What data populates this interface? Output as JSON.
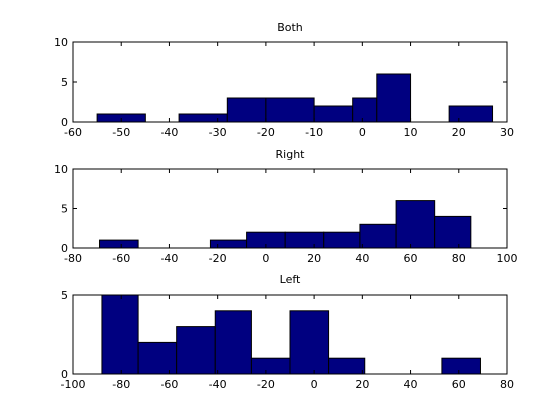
{
  "chart_data": [
    {
      "type": "bar",
      "title": "Both",
      "xlabel": "",
      "ylabel": "",
      "xlim": [
        -60,
        30
      ],
      "ylim": [
        0,
        10
      ],
      "x_ticks": [
        -60,
        -50,
        -40,
        -30,
        -20,
        -10,
        0,
        10,
        20,
        30
      ],
      "y_ticks": [
        0,
        5,
        10
      ],
      "bins": [
        {
          "x0": -55,
          "x1": -45,
          "value": 1
        },
        {
          "x0": -38,
          "x1": -28,
          "value": 1
        },
        {
          "x0": -28,
          "x1": -20,
          "value": 3
        },
        {
          "x0": -20,
          "x1": -10,
          "value": 3
        },
        {
          "x0": -10,
          "x1": -2,
          "value": 2
        },
        {
          "x0": -2,
          "x1": 3,
          "value": 3
        },
        {
          "x0": 3,
          "x1": 10,
          "value": 6
        },
        {
          "x0": 18,
          "x1": 27,
          "value": 2
        }
      ],
      "bar_color": "#000080",
      "grid": false
    },
    {
      "type": "bar",
      "title": "Right",
      "xlabel": "",
      "ylabel": "",
      "xlim": [
        -80,
        100
      ],
      "ylim": [
        0,
        10
      ],
      "x_ticks": [
        -80,
        -60,
        -40,
        -20,
        0,
        20,
        40,
        60,
        80,
        100
      ],
      "y_ticks": [
        0,
        5,
        10
      ],
      "bins": [
        {
          "x0": -69,
          "x1": -53,
          "value": 1
        },
        {
          "x0": -23,
          "x1": -8,
          "value": 1
        },
        {
          "x0": -8,
          "x1": 8,
          "value": 2
        },
        {
          "x0": 8,
          "x1": 24,
          "value": 2
        },
        {
          "x0": 24,
          "x1": 39,
          "value": 2
        },
        {
          "x0": 39,
          "x1": 54,
          "value": 3
        },
        {
          "x0": 54,
          "x1": 70,
          "value": 6
        },
        {
          "x0": 70,
          "x1": 85,
          "value": 4
        }
      ],
      "bar_color": "#000080",
      "grid": false
    },
    {
      "type": "bar",
      "title": "Left",
      "xlabel": "",
      "ylabel": "",
      "xlim": [
        -100,
        80
      ],
      "ylim": [
        0,
        5
      ],
      "x_ticks": [
        -100,
        -80,
        -60,
        -40,
        -20,
        0,
        20,
        40,
        60,
        80
      ],
      "y_ticks": [
        0,
        5
      ],
      "bins": [
        {
          "x0": -88,
          "x1": -73,
          "value": 5
        },
        {
          "x0": -73,
          "x1": -57,
          "value": 2
        },
        {
          "x0": -57,
          "x1": -41,
          "value": 3
        },
        {
          "x0": -41,
          "x1": -26,
          "value": 4
        },
        {
          "x0": -26,
          "x1": -10,
          "value": 1
        },
        {
          "x0": -10,
          "x1": 6,
          "value": 4
        },
        {
          "x0": 6,
          "x1": 21,
          "value": 1
        },
        {
          "x0": 53,
          "x1": 69,
          "value": 1
        }
      ],
      "bar_color": "#000080",
      "grid": false
    }
  ]
}
